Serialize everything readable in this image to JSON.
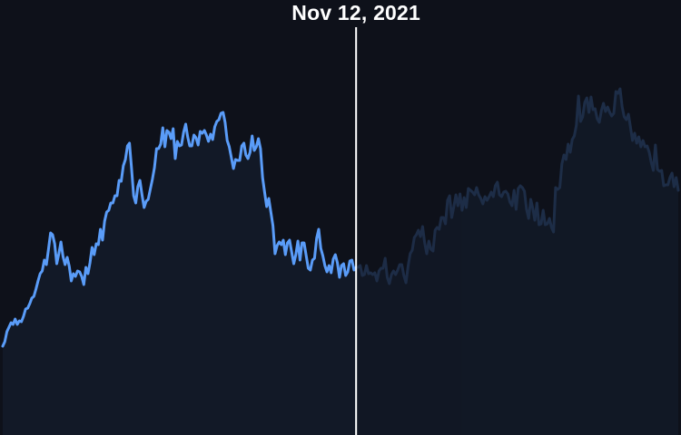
{
  "theme": {
    "background": "#0e111a",
    "line_color": "#5a9cf8",
    "cursor_color": "#ffffff",
    "label_color": "#ffffff"
  },
  "cursor": {
    "date_label": "Nov 12, 2021",
    "point_index": 170
  },
  "chart_data": {
    "type": "line",
    "title": "",
    "xlabel": "",
    "ylabel": "",
    "grid": false,
    "legend": "none",
    "ylim": [
      0,
      480
    ],
    "series": [
      {
        "values": [
          98,
          103,
          114,
          119,
          124,
          122,
          128,
          122,
          126,
          125,
          131,
          139,
          140,
          145,
          151,
          153,
          161,
          170,
          178,
          181,
          193,
          188,
          205,
          223,
          221,
          211,
          189,
          200,
          213,
          197,
          188,
          196,
          186,
          170,
          178,
          175,
          181,
          180,
          175,
          166,
          185,
          178,
          190,
          207,
          199,
          211,
          210,
          227,
          215,
          236,
          246,
          248,
          256,
          256,
          264,
          264,
          281,
          280,
          297,
          304,
          319,
          322,
          294,
          264,
          256,
          274,
          281,
          265,
          251,
          258,
          260,
          271,
          282,
          295,
          316,
          316,
          321,
          339,
          318,
          336,
          334,
          327,
          338,
          305,
          324,
          319,
          320,
          334,
          343,
          329,
          319,
          319,
          331,
          328,
          320,
          335,
          333,
          336,
          331,
          324,
          332,
          326,
          340,
          346,
          348,
          355,
          356,
          345,
          325,
          318,
          306,
          294,
          304,
          303,
          303,
          319,
          322,
          309,
          305,
          312,
          330,
          314,
          318,
          327,
          316,
          284,
          268,
          252,
          261,
          246,
          231,
          200,
          209,
          213,
          210,
          215,
          199,
          212,
          215,
          202,
          189,
          199,
          214,
          193,
          212,
          212,
          198,
          184,
          182,
          193,
          195,
          217,
          227,
          206,
          198,
          187,
          180,
          187,
          179,
          194,
          199,
          190,
          174,
          187,
          189,
          176,
          180,
          192,
          193,
          182,
          185,
          185,
          187,
          176,
          177,
          187,
          178,
          179,
          177,
          179,
          170,
          181,
          184,
          184,
          195,
          174,
          167,
          177,
          181,
          177,
          182,
          188,
          188,
          176,
          168,
          186,
          200,
          204,
          218,
          221,
          226,
          219,
          230,
          212,
          200,
          214,
          205,
          203,
          226,
          229,
          227,
          240,
          240,
          233,
          259,
          264,
          240,
          252,
          265,
          253,
          266,
          248,
          262,
          251,
          272,
          270,
          268,
          265,
          273,
          265,
          261,
          255,
          263,
          259,
          263,
          268,
          263,
          275,
          279,
          265,
          263,
          268,
          269,
          266,
          257,
          253,
          270,
          249,
          272,
          275,
          273,
          269,
          249,
          239,
          260,
          250,
          237,
          256,
          232,
          233,
          248,
          232,
          233,
          239,
          229,
          224,
          273,
          271,
          273,
          299,
          309,
          304,
          321,
          312,
          326,
          330,
          342,
          374,
          346,
          351,
          367,
          372,
          356,
          373,
          359,
          360,
          349,
          345,
          358,
          366,
          357,
          362,
          356,
          352,
          355,
          379,
          377,
          382,
          362,
          351,
          348,
          354,
          340,
          325,
          333,
          322,
          329,
          318,
          325,
          318,
          319,
          312,
          301,
          292,
          320,
          293,
          291,
          292,
          275,
          276,
          276,
          284,
          289,
          274,
          284,
          270
        ]
      }
    ]
  }
}
